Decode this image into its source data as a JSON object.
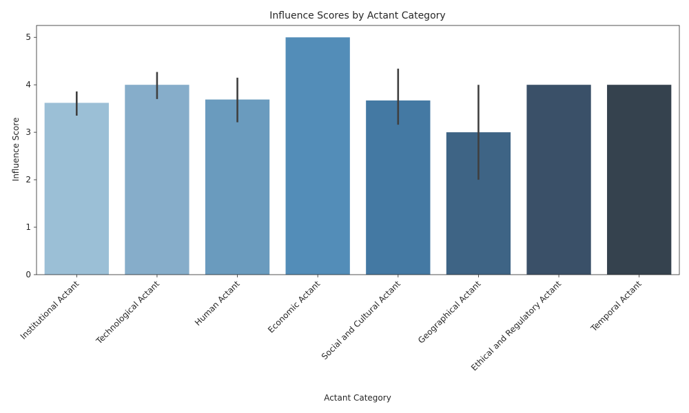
{
  "chart_data": {
    "type": "bar",
    "title": "Influence Scores by Actant Category",
    "xlabel": "Actant Category",
    "ylabel": "Influence Score",
    "ylim": [
      0,
      5.25
    ],
    "yticks": [
      0,
      1,
      2,
      3,
      4,
      5
    ],
    "grid": false,
    "legend": "none",
    "categories": [
      "Institutional Actant",
      "Technological Actant",
      "Human Actant",
      "Economic Actant",
      "Social and Cultural Actant",
      "Geographical Actant",
      "Ethical and Regulatory Actant",
      "Temporal Actant"
    ],
    "values": [
      3.62,
      4.0,
      3.69,
      5.0,
      3.67,
      3.0,
      4.0,
      4.0
    ],
    "error_low": [
      3.35,
      3.7,
      3.21,
      null,
      3.16,
      2.0,
      null,
      null
    ],
    "error_high": [
      3.86,
      4.27,
      4.15,
      null,
      4.34,
      4.0,
      null,
      null
    ],
    "colors": [
      "#9bbfd6",
      "#86adca",
      "#6a9bbe",
      "#538db8",
      "#4479a3",
      "#3e6485",
      "#3a5068",
      "#35424e"
    ]
  }
}
